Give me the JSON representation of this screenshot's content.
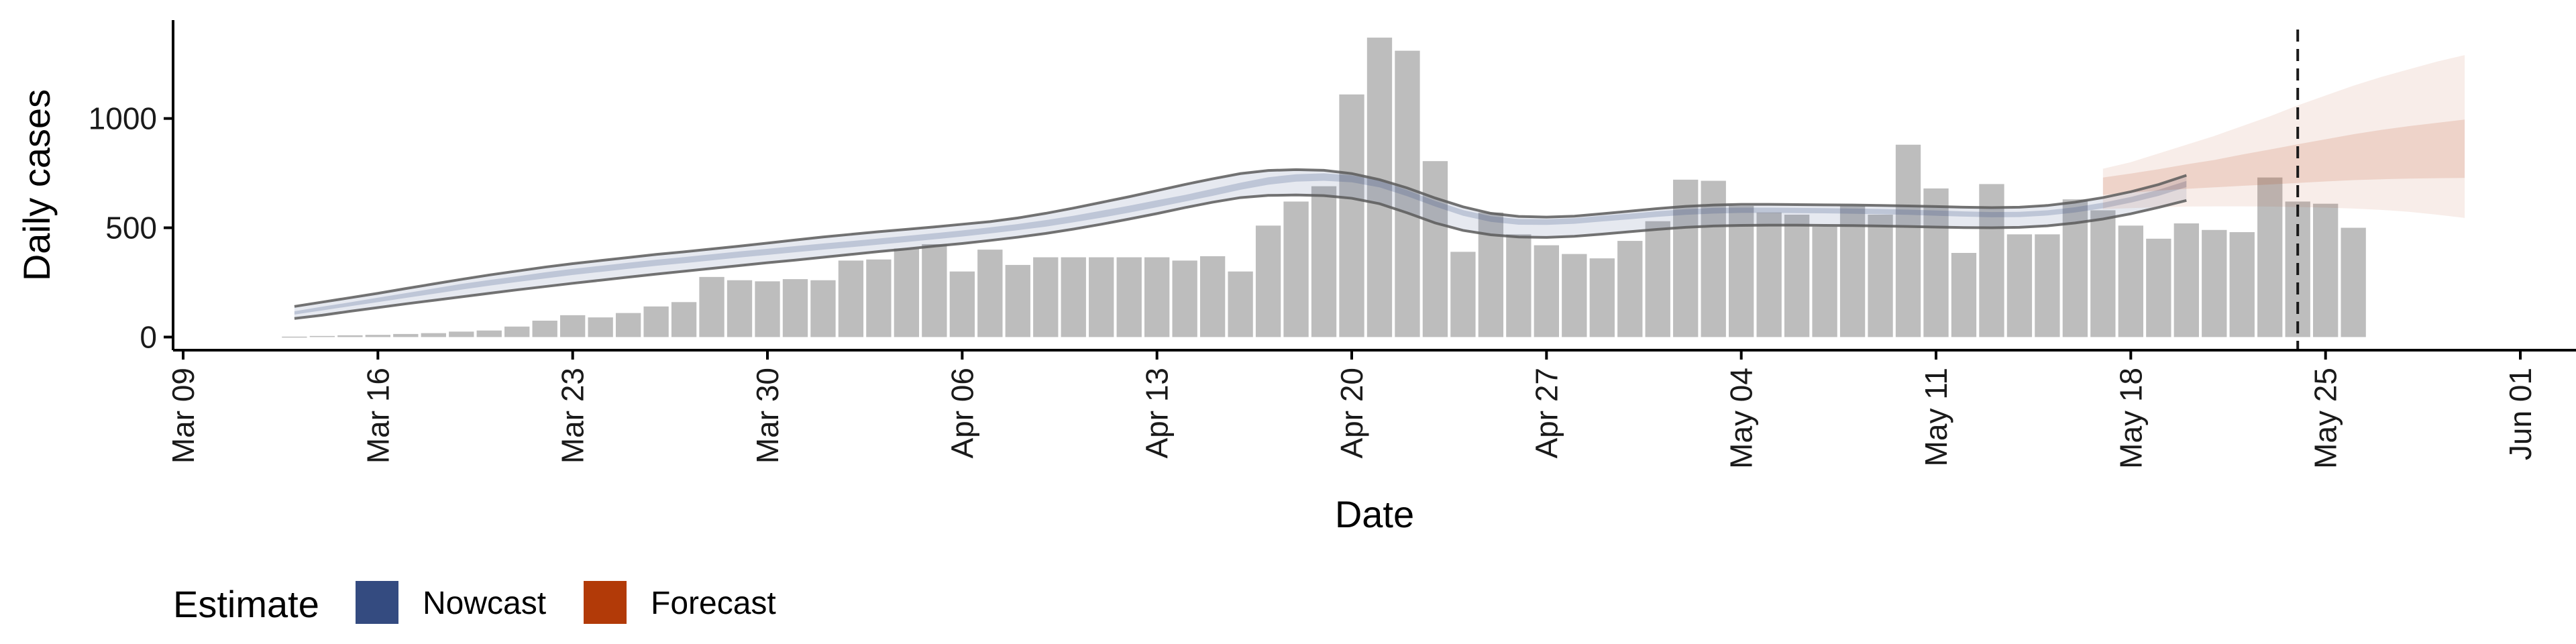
{
  "chart_data": {
    "type": "bar",
    "title": "",
    "xlabel": "Date",
    "ylabel": "Daily cases",
    "ylim": [
      -60,
      1450
    ],
    "yticks": [
      0,
      500,
      1000
    ],
    "x_range": [
      "2020-03-09",
      "2020-06-01"
    ],
    "xticks": [
      {
        "date": "2020-03-09",
        "label": "Mar 09"
      },
      {
        "date": "2020-03-16",
        "label": "Mar 16"
      },
      {
        "date": "2020-03-23",
        "label": "Mar 23"
      },
      {
        "date": "2020-03-30",
        "label": "Mar 30"
      },
      {
        "date": "2020-04-06",
        "label": "Apr 06"
      },
      {
        "date": "2020-04-13",
        "label": "Apr 13"
      },
      {
        "date": "2020-04-20",
        "label": "Apr 20"
      },
      {
        "date": "2020-04-27",
        "label": "Apr 27"
      },
      {
        "date": "2020-05-04",
        "label": "May 04"
      },
      {
        "date": "2020-05-11",
        "label": "May 11"
      },
      {
        "date": "2020-05-18",
        "label": "May 18"
      },
      {
        "date": "2020-05-25",
        "label": "May 25"
      },
      {
        "date": "2020-06-01",
        "label": "Jun 01"
      }
    ],
    "grid": false,
    "reference_line_date": "2020-05-24",
    "reported_cases": {
      "start_date": "2020-03-13",
      "values": [
        2,
        5,
        8,
        10,
        14,
        18,
        25,
        30,
        48,
        75,
        100,
        90,
        110,
        140,
        160,
        275,
        260,
        255,
        265,
        260,
        350,
        355,
        405,
        425,
        300,
        400,
        330,
        365,
        365,
        365,
        365,
        365,
        350,
        370,
        300,
        510,
        620,
        690,
        1110,
        1370,
        1310,
        805,
        390,
        570,
        470,
        420,
        380,
        360,
        440,
        530,
        720,
        715,
        600,
        570,
        560,
        505,
        600,
        560,
        880,
        680,
        385,
        700,
        470,
        470,
        630,
        580,
        510,
        450,
        520,
        490,
        480,
        730,
        620,
        610,
        500
      ]
    },
    "nowcast": {
      "start_date": "2020-03-13",
      "median": [
        110,
        130,
        150,
        170,
        190,
        210,
        230,
        248,
        265,
        282,
        298,
        312,
        326,
        340,
        352,
        365,
        378,
        390,
        402,
        414,
        425,
        437,
        449,
        461,
        474,
        488,
        503,
        520,
        540,
        562,
        585,
        610,
        635,
        662,
        690,
        714,
        728,
        732,
        724,
        700,
        658,
        610,
        568,
        540,
        527,
        526,
        531,
        542,
        552,
        563,
        572,
        578,
        580,
        580,
        579,
        578,
        576,
        574,
        571,
        567,
        563,
        560,
        561,
        568,
        582,
        602,
        628,
        660,
        700
      ],
      "outer_lower": [
        85,
        100,
        118,
        135,
        152,
        168,
        184,
        200,
        216,
        231,
        246,
        260,
        274,
        288,
        301,
        314,
        327,
        340,
        352,
        365,
        378,
        391,
        403,
        416,
        428,
        442,
        457,
        474,
        494,
        516,
        540,
        565,
        592,
        617,
        638,
        648,
        650,
        647,
        635,
        610,
        568,
        522,
        488,
        468,
        458,
        456,
        461,
        471,
        482,
        493,
        502,
        508,
        511,
        512,
        512,
        511,
        510,
        508,
        506,
        503,
        501,
        500,
        502,
        509,
        522,
        540,
        564,
        593,
        625
      ],
      "outer_upper": [
        140,
        160,
        180,
        200,
        222,
        243,
        264,
        284,
        302,
        320,
        336,
        350,
        364,
        378,
        390,
        403,
        416,
        430,
        444,
        458,
        470,
        482,
        493,
        504,
        516,
        528,
        545,
        566,
        590,
        616,
        642,
        670,
        698,
        724,
        748,
        762,
        766,
        763,
        748,
        720,
        682,
        636,
        596,
        566,
        552,
        549,
        553,
        564,
        576,
        588,
        598,
        604,
        607,
        607,
        606,
        605,
        604,
        602,
        600,
        597,
        594,
        592,
        594,
        602,
        617,
        638,
        665,
        698,
        740
      ],
      "inner_lower": [
        103,
        122,
        141,
        160,
        179,
        198,
        217,
        235,
        252,
        268,
        284,
        298,
        312,
        326,
        338,
        351,
        364,
        376,
        388,
        400,
        411,
        423,
        435,
        447,
        460,
        474,
        489,
        505,
        525,
        546,
        569,
        594,
        620,
        646,
        674,
        697,
        711,
        715,
        708,
        685,
        644,
        597,
        555,
        527,
        514,
        513,
        518,
        529,
        539,
        550,
        559,
        565,
        568,
        568,
        567,
        566,
        564,
        562,
        559,
        555,
        551,
        548,
        549,
        556,
        570,
        589,
        615,
        646,
        686
      ],
      "inner_upper": [
        118,
        139,
        159,
        180,
        201,
        222,
        243,
        261,
        278,
        296,
        312,
        326,
        340,
        354,
        366,
        379,
        392,
        404,
        416,
        428,
        439,
        451,
        463,
        475,
        488,
        502,
        517,
        535,
        555,
        578,
        601,
        626,
        650,
        678,
        706,
        731,
        745,
        749,
        740,
        715,
        672,
        623,
        581,
        553,
        540,
        539,
        544,
        555,
        565,
        576,
        585,
        591,
        592,
        592,
        591,
        590,
        588,
        586,
        583,
        579,
        575,
        572,
        573,
        580,
        594,
        615,
        641,
        674,
        714
      ]
    },
    "forecast": {
      "start_date": "2020-05-17",
      "median": [
        710,
        722,
        735,
        748,
        760,
        773,
        786,
        798,
        810,
        822,
        833,
        843,
        852,
        860
      ],
      "outer_lower": [
        585,
        590,
        594,
        597,
        598,
        598,
        597,
        595,
        592,
        588,
        582,
        573,
        560,
        545
      ],
      "outer_upper": [
        770,
        800,
        840,
        880,
        920,
        965,
        1010,
        1060,
        1105,
        1150,
        1190,
        1225,
        1260,
        1290
      ],
      "inner_lower": [
        650,
        660,
        670,
        678,
        685,
        692,
        698,
        705,
        712,
        718,
        722,
        725,
        727,
        728
      ],
      "inner_upper": [
        730,
        748,
        768,
        790,
        810,
        835,
        858,
        882,
        905,
        928,
        948,
        965,
        980,
        995
      ]
    },
    "legend": {
      "title": "Estimate",
      "placement": "bottom-left",
      "items": [
        {
          "label": "Nowcast",
          "color": "#344b80"
        },
        {
          "label": "Forecast",
          "color": "#b23a08"
        }
      ]
    },
    "colors": {
      "bars": "#bdbdbd",
      "nowcast_band": "#344b80",
      "forecast_band": "#b23a08",
      "interval_lines": "#5a5a5a",
      "reference_line": "#1a1a1a"
    }
  }
}
